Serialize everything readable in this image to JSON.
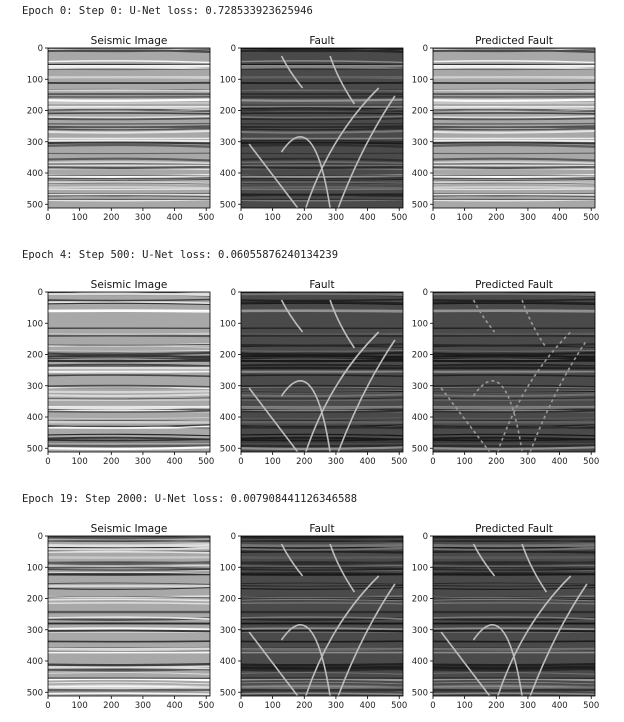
{
  "blocks": [
    {
      "header": "Epoch 0: Step 0: U-Net loss: 0.728533923625946",
      "panels": [
        {
          "title": "Seismic Image"
        },
        {
          "title": "Fault"
        },
        {
          "title": "Predicted Fault"
        }
      ]
    },
    {
      "header": "Epoch 4: Step 500: U-Net loss: 0.06055876240134239",
      "panels": [
        {
          "title": "Seismic Image"
        },
        {
          "title": "Fault"
        },
        {
          "title": "Predicted Fault"
        }
      ]
    },
    {
      "header": "Epoch 19: Step 2000: U-Net loss: 0.007908441126346588",
      "panels": [
        {
          "title": "Seismic Image"
        },
        {
          "title": "Fault"
        },
        {
          "title": "Predicted Fault"
        }
      ]
    }
  ],
  "axes": {
    "xlim": [
      0,
      512
    ],
    "ylim": [
      0,
      512
    ],
    "xticks": [
      0,
      100,
      200,
      300,
      400,
      500
    ],
    "yticks": [
      0,
      100,
      200,
      300,
      400,
      500
    ]
  }
}
